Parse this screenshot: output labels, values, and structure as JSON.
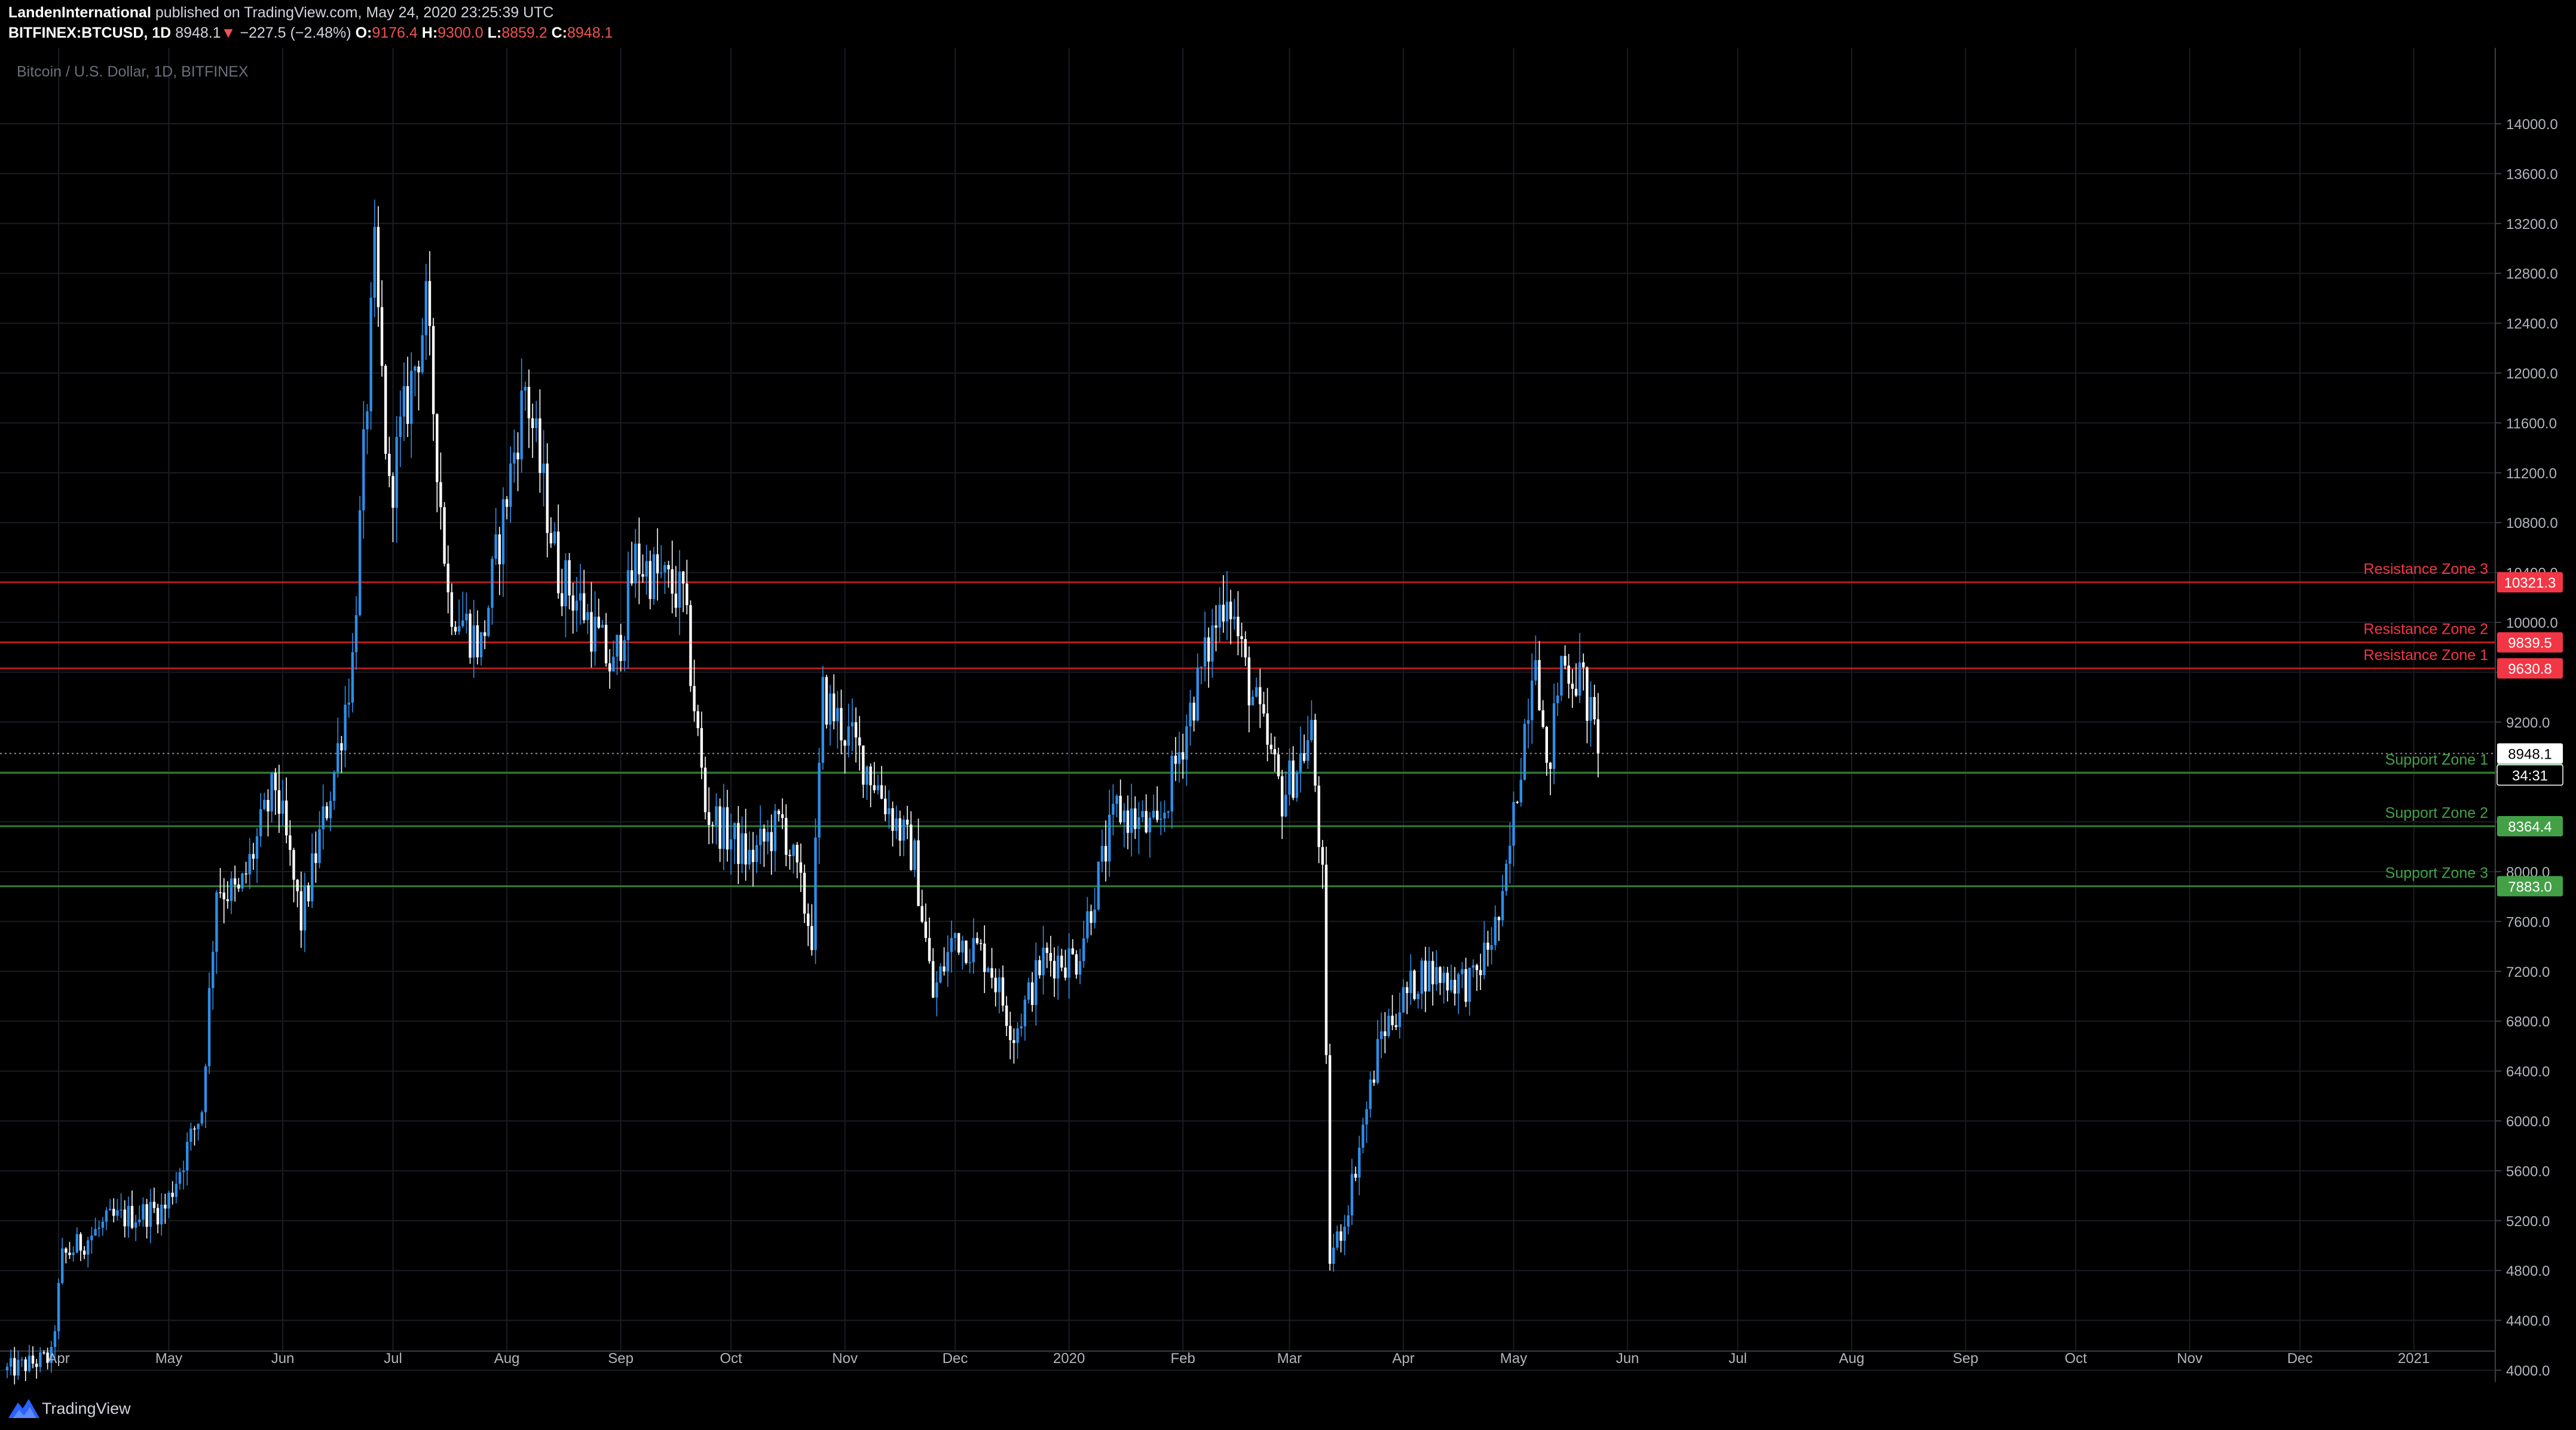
{
  "header": {
    "author": "LandenInternational",
    "published": "published on TradingView.com, May 24, 2020 23:25:39 UTC",
    "symbol": "BITFINEX:BTCUSD, 1D",
    "last": "8948.1",
    "arrow": "▼",
    "change": "−227.5 (−2.48%)",
    "o_label": "O:",
    "o_value": "9176.4",
    "h_label": "H:",
    "h_value": "9300.0",
    "l_label": "L:",
    "l_value": "8859.2",
    "c_label": "C:",
    "c_value": "8948.1"
  },
  "footer": {
    "brand": "TradingView",
    "logo_icon": "tradingview-logo-icon"
  },
  "chart_data": {
    "type": "candlestick",
    "title": "Bitcoin / U.S. Dollar, 1D, BITFINEX",
    "xlabel": "",
    "ylabel": "",
    "ylim": [
      3900,
      14150
    ],
    "xlim": [
      "2019-03-18",
      "2021-01-30"
    ],
    "grid": true,
    "background": "#000000",
    "up_color": "#2e8ee8",
    "down_color": "#ffffff",
    "y_ticks": [
      4000,
      4400,
      4800,
      5200,
      5600,
      6000,
      6400,
      6800,
      7200,
      7600,
      8000,
      8400,
      8800,
      9200,
      9600,
      10000,
      10400,
      10800,
      11200,
      11600,
      12000,
      12400,
      12800,
      13200,
      13600,
      14000
    ],
    "y_tick_labels": [
      "4000.0",
      "4400.0",
      "4800.0",
      "5200.0",
      "5600.0",
      "6000.0",
      "6400.0",
      "6800.0",
      "7200.0",
      "7600.0",
      "8000.0",
      "8400.0",
      "8800.0",
      "9200.0",
      "9600.0",
      "10000.0",
      "10400.0",
      "10800.0",
      "11200.0",
      "11600.0",
      "12000.0",
      "12400.0",
      "12800.0",
      "13200.0",
      "13600.0",
      "14000.0"
    ],
    "x_ticks": [
      {
        "label": "Apr",
        "date": "2019-04-01"
      },
      {
        "label": "May",
        "date": "2019-05-01"
      },
      {
        "label": "Jun",
        "date": "2019-06-01"
      },
      {
        "label": "Jul",
        "date": "2019-07-01"
      },
      {
        "label": "Aug",
        "date": "2019-08-01"
      },
      {
        "label": "Sep",
        "date": "2019-09-01"
      },
      {
        "label": "Oct",
        "date": "2019-10-01"
      },
      {
        "label": "Nov",
        "date": "2019-11-01"
      },
      {
        "label": "Dec",
        "date": "2019-12-01"
      },
      {
        "label": "2020",
        "date": "2020-01-01"
      },
      {
        "label": "Feb",
        "date": "2020-02-01"
      },
      {
        "label": "Mar",
        "date": "2020-03-01"
      },
      {
        "label": "Apr",
        "date": "2020-04-01"
      },
      {
        "label": "May",
        "date": "2020-05-01"
      },
      {
        "label": "Jun",
        "date": "2020-06-01"
      },
      {
        "label": "Jul",
        "date": "2020-07-01"
      },
      {
        "label": "Aug",
        "date": "2020-08-01"
      },
      {
        "label": "Sep",
        "date": "2020-09-01"
      },
      {
        "label": "Oct",
        "date": "2020-10-01"
      },
      {
        "label": "Nov",
        "date": "2020-11-01"
      },
      {
        "label": "Dec",
        "date": "2020-12-01"
      },
      {
        "label": "2021",
        "date": "2021-01-01"
      }
    ],
    "price_path": [
      {
        "date": "2019-03-18",
        "close": 4000
      },
      {
        "date": "2019-03-30",
        "close": 4100
      },
      {
        "date": "2019-04-02",
        "close": 4900
      },
      {
        "date": "2019-04-15",
        "close": 5200
      },
      {
        "date": "2019-04-30",
        "close": 5300
      },
      {
        "date": "2019-05-10",
        "close": 6100
      },
      {
        "date": "2019-05-14",
        "close": 7900
      },
      {
        "date": "2019-05-20",
        "close": 7800
      },
      {
        "date": "2019-05-30",
        "close": 8700
      },
      {
        "date": "2019-06-06",
        "close": 7600
      },
      {
        "date": "2019-06-15",
        "close": 8800
      },
      {
        "date": "2019-06-20",
        "close": 9700
      },
      {
        "date": "2019-06-26",
        "close": 12900
      },
      {
        "date": "2019-06-30",
        "close": 11000
      },
      {
        "date": "2019-07-03",
        "close": 11500
      },
      {
        "date": "2019-07-10",
        "close": 12500
      },
      {
        "date": "2019-07-16",
        "close": 10200
      },
      {
        "date": "2019-07-25",
        "close": 9800
      },
      {
        "date": "2019-08-06",
        "close": 11900
      },
      {
        "date": "2019-08-15",
        "close": 10400
      },
      {
        "date": "2019-08-22",
        "close": 10100
      },
      {
        "date": "2019-08-30",
        "close": 9600
      },
      {
        "date": "2019-09-05",
        "close": 10500
      },
      {
        "date": "2019-09-18",
        "close": 10200
      },
      {
        "date": "2019-09-24",
        "close": 8500
      },
      {
        "date": "2019-10-06",
        "close": 8100
      },
      {
        "date": "2019-10-15",
        "close": 8400
      },
      {
        "date": "2019-10-23",
        "close": 7500
      },
      {
        "date": "2019-10-26",
        "close": 9400
      },
      {
        "date": "2019-11-08",
        "close": 8800
      },
      {
        "date": "2019-11-20",
        "close": 8100
      },
      {
        "date": "2019-11-25",
        "close": 7000
      },
      {
        "date": "2019-12-01",
        "close": 7500
      },
      {
        "date": "2019-12-10",
        "close": 7300
      },
      {
        "date": "2019-12-17",
        "close": 6700
      },
      {
        "date": "2019-12-25",
        "close": 7300
      },
      {
        "date": "2020-01-03",
        "close": 7300
      },
      {
        "date": "2020-01-14",
        "close": 8500
      },
      {
        "date": "2020-01-25",
        "close": 8300
      },
      {
        "date": "2020-02-03",
        "close": 9300
      },
      {
        "date": "2020-02-13",
        "close": 10300
      },
      {
        "date": "2020-02-18",
        "close": 9600
      },
      {
        "date": "2020-02-28",
        "close": 8600
      },
      {
        "date": "2020-03-07",
        "close": 9100
      },
      {
        "date": "2020-03-10",
        "close": 7900
      },
      {
        "date": "2020-03-12",
        "close": 4900
      },
      {
        "date": "2020-03-16",
        "close": 5200
      },
      {
        "date": "2020-03-26",
        "close": 6700
      },
      {
        "date": "2020-04-06",
        "close": 7200
      },
      {
        "date": "2020-04-20",
        "close": 7100
      },
      {
        "date": "2020-04-28",
        "close": 7700
      },
      {
        "date": "2020-05-07",
        "close": 9900
      },
      {
        "date": "2020-05-10",
        "close": 8700
      },
      {
        "date": "2020-05-14",
        "close": 9700
      },
      {
        "date": "2020-05-20",
        "close": 9500
      },
      {
        "date": "2020-05-24",
        "close": 8948.1
      }
    ],
    "last_price": {
      "value": 8948.1,
      "label": "8948.1",
      "countdown": "34:31"
    },
    "zones": [
      {
        "name": "Resistance Zone 3",
        "value": 10321.3,
        "label": "10321.3",
        "color": "#f23645",
        "line": "#b71c1c"
      },
      {
        "name": "Resistance Zone 2",
        "value": 9839.5,
        "label": "9839.5",
        "color": "#f23645",
        "line": "#b71c1c"
      },
      {
        "name": "Resistance Zone 1",
        "value": 9630.8,
        "label": "9630.8",
        "color": "#f23645",
        "line": "#b71c1c"
      },
      {
        "name": "Support Zone 1",
        "value": 8792.4,
        "label": "8792.4",
        "color": "#43a047",
        "line": "#2e7d32"
      },
      {
        "name": "Support Zone 2",
        "value": 8364.4,
        "label": "8364.4",
        "color": "#43a047",
        "line": "#2e7d32"
      },
      {
        "name": "Support Zone 3",
        "value": 7883.0,
        "label": "7883.0",
        "color": "#43a047",
        "line": "#2e7d32"
      }
    ]
  }
}
